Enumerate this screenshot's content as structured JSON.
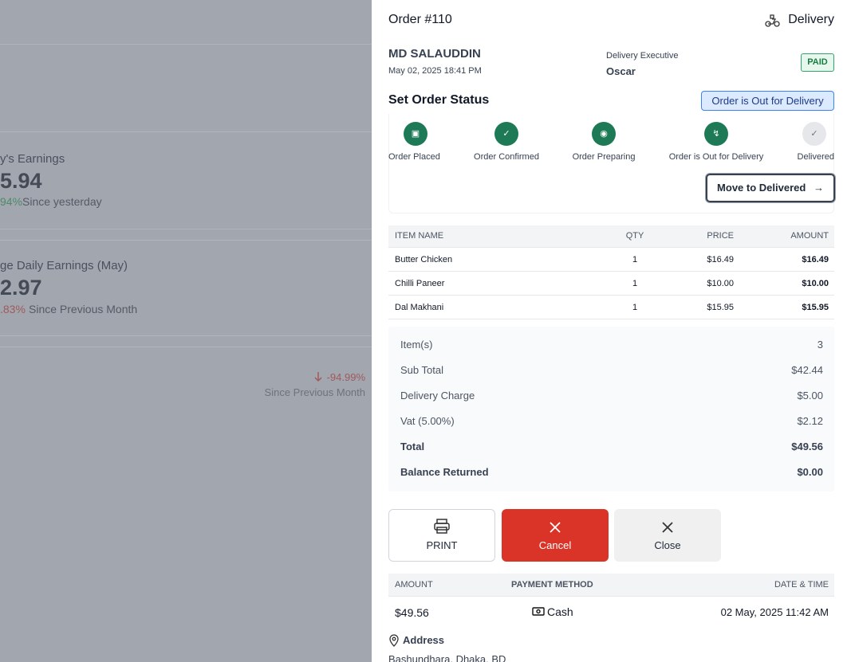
{
  "background": {
    "cards": [
      {
        "title": "y's Earnings",
        "value": "5.94",
        "change": "94%",
        "note": "Since yesterday"
      },
      {
        "title": "ge Daily Earnings (May)",
        "value": "2.97",
        "change": ".83%",
        "note": "Since Previous Month"
      }
    ],
    "stat": {
      "change": "-94.99%",
      "note": "Since Previous Month"
    }
  },
  "order": {
    "title": "Order #110",
    "type": "Delivery",
    "customer": "MD SALAUDDIN",
    "date": "May 02, 2025 18:41 PM",
    "executive_label": "Delivery Executive",
    "executive": "Oscar",
    "payment_status": "PAID"
  },
  "status": {
    "heading": "Set Order Status",
    "current": "Order is Out for Delivery",
    "steps": [
      "Order Placed",
      "Order Confirmed",
      "Order Preparing",
      "Order is Out for Delivery",
      "Delivered"
    ],
    "action": "Move to Delivered"
  },
  "items": {
    "headers": [
      "ITEM NAME",
      "QTY",
      "PRICE",
      "AMOUNT"
    ],
    "rows": [
      [
        "Butter Chicken",
        "1",
        "$16.49",
        "$16.49"
      ],
      [
        "Chilli Paneer",
        "1",
        "$10.00",
        "$10.00"
      ],
      [
        "Dal Makhani",
        "1",
        "$15.95",
        "$15.95"
      ]
    ]
  },
  "summary": [
    [
      "Item(s)",
      "3"
    ],
    [
      "Sub Total",
      "$42.44"
    ],
    [
      "Delivery Charge",
      "$5.00"
    ],
    [
      "Vat (5.00%)",
      "$2.12"
    ],
    [
      "Total",
      "$49.56"
    ],
    [
      "Balance Returned",
      "$0.00"
    ]
  ],
  "buttons": [
    "PRINT",
    "Cancel",
    "Close"
  ],
  "payments": {
    "headers": [
      "AMOUNT",
      "PAYMENT METHOD",
      "DATE & TIME"
    ],
    "rows": [
      [
        "$49.56",
        "Cash",
        "02 May, 2025 11:42 AM"
      ]
    ]
  },
  "address": {
    "label": "Address",
    "value": "Bashundhara, Dhaka, BD"
  }
}
